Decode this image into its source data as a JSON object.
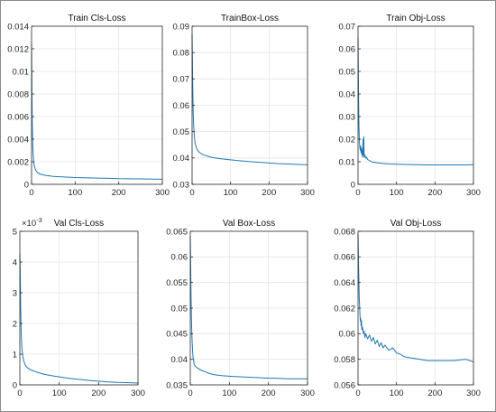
{
  "line_color": "#1f77b4",
  "chart_data": [
    {
      "type": "line",
      "title": "Train Cls-Loss",
      "xlim": [
        0,
        300
      ],
      "ylim": [
        0,
        0.014
      ],
      "xticks": [
        0,
        100,
        200,
        300
      ],
      "yticks": [
        0,
        0.002,
        0.004,
        0.006,
        0.008,
        0.01,
        0.012,
        0.014
      ],
      "ytick_labels": [
        "0",
        "0.002",
        "0.004",
        "0.006",
        "0.008",
        "0.01",
        "0.012",
        "0.014"
      ],
      "grid": true,
      "series": [
        {
          "x": [
            0,
            1,
            2,
            3,
            4,
            5,
            6,
            8,
            10,
            12,
            15,
            20,
            25,
            30,
            40,
            50,
            60,
            70,
            80,
            100,
            120,
            150,
            180,
            200,
            220,
            250,
            280,
            300
          ],
          "y": [
            0.0125,
            0.0075,
            0.0045,
            0.0032,
            0.0025,
            0.002,
            0.0017,
            0.0014,
            0.0012,
            0.0011,
            0.001,
            0.0009,
            0.00085,
            0.0008,
            0.00075,
            0.0007,
            0.00068,
            0.00066,
            0.00064,
            0.0006,
            0.00058,
            0.00055,
            0.00053,
            0.0005,
            0.00049,
            0.00048,
            0.00046,
            0.00045
          ]
        }
      ]
    },
    {
      "type": "line",
      "title": "TrainBox-Loss",
      "xlim": [
        0,
        300
      ],
      "ylim": [
        0.03,
        0.09
      ],
      "xticks": [
        0,
        100,
        200,
        300
      ],
      "yticks": [
        0.03,
        0.04,
        0.05,
        0.06,
        0.07,
        0.08,
        0.09
      ],
      "ytick_labels": [
        "0.03",
        "0.04",
        "0.05",
        "0.06",
        "0.07",
        "0.08",
        "0.09"
      ],
      "grid": true,
      "series": [
        {
          "x": [
            0,
            1,
            2,
            3,
            4,
            5,
            6,
            8,
            10,
            12,
            15,
            20,
            25,
            30,
            40,
            50,
            60,
            80,
            100,
            120,
            150,
            180,
            200,
            220,
            250,
            280,
            300
          ],
          "y": [
            0.087,
            0.075,
            0.064,
            0.057,
            0.053,
            0.05,
            0.048,
            0.0455,
            0.0445,
            0.0435,
            0.0428,
            0.042,
            0.0415,
            0.0412,
            0.0407,
            0.0403,
            0.04,
            0.0396,
            0.0393,
            0.039,
            0.0386,
            0.0383,
            0.0381,
            0.0379,
            0.0377,
            0.0375,
            0.0374
          ]
        }
      ]
    },
    {
      "type": "line",
      "title": "Train Obj-Loss",
      "xlim": [
        0,
        300
      ],
      "ylim": [
        0,
        0.07
      ],
      "xticks": [
        0,
        100,
        200,
        300
      ],
      "yticks": [
        0,
        0.01,
        0.02,
        0.03,
        0.04,
        0.05,
        0.06,
        0.07
      ],
      "ytick_labels": [
        "0",
        "0.01",
        "0.02",
        "0.03",
        "0.04",
        "0.05",
        "0.06",
        "0.07"
      ],
      "grid": true,
      "series": [
        {
          "x": [
            0,
            1,
            2,
            3,
            4,
            5,
            6,
            7,
            8,
            9,
            10,
            11,
            12,
            13,
            14,
            15,
            16,
            18,
            20,
            22,
            25,
            30,
            35,
            40,
            50,
            60,
            80,
            100,
            120,
            150,
            180,
            200,
            220,
            250,
            280,
            300
          ],
          "y": [
            0.065,
            0.045,
            0.03,
            0.022,
            0.018,
            0.016,
            0.015,
            0.017,
            0.014,
            0.016,
            0.013,
            0.015,
            0.012,
            0.02,
            0.013,
            0.021,
            0.012,
            0.013,
            0.0115,
            0.012,
            0.011,
            0.0105,
            0.01,
            0.0098,
            0.0095,
            0.0093,
            0.009,
            0.0089,
            0.0088,
            0.0087,
            0.0086,
            0.0086,
            0.0086,
            0.0086,
            0.0086,
            0.0087
          ]
        }
      ]
    },
    {
      "type": "line",
      "title": "Val Cls-Loss",
      "exponent_label": "×10",
      "exponent_power": "-3",
      "xlim": [
        0,
        300
      ],
      "ylim": [
        0,
        5
      ],
      "xticks": [
        0,
        100,
        200,
        300
      ],
      "yticks": [
        0,
        1,
        2,
        3,
        4,
        5
      ],
      "ytick_labels": [
        "0",
        "1",
        "2",
        "3",
        "4",
        "5"
      ],
      "grid": true,
      "series": [
        {
          "x": [
            0,
            1,
            2,
            3,
            4,
            5,
            6,
            8,
            10,
            12,
            15,
            20,
            25,
            30,
            40,
            50,
            60,
            80,
            100,
            120,
            150,
            180,
            200,
            220,
            250,
            280,
            300
          ],
          "y": [
            4.3,
            3.6,
            2.6,
            1.9,
            1.5,
            1.25,
            1.1,
            0.9,
            0.78,
            0.7,
            0.62,
            0.55,
            0.51,
            0.48,
            0.43,
            0.39,
            0.35,
            0.3,
            0.26,
            0.22,
            0.18,
            0.14,
            0.12,
            0.1,
            0.08,
            0.07,
            0.06
          ]
        }
      ]
    },
    {
      "type": "line",
      "title": "Val Box-Loss",
      "xlim": [
        0,
        300
      ],
      "ylim": [
        0.035,
        0.065
      ],
      "xticks": [
        0,
        100,
        200,
        300
      ],
      "yticks": [
        0.035,
        0.04,
        0.045,
        0.05,
        0.055,
        0.06,
        0.065
      ],
      "ytick_labels": [
        "0.035",
        "0.04",
        "0.045",
        "0.05",
        "0.055",
        "0.06",
        "0.065"
      ],
      "grid": true,
      "series": [
        {
          "x": [
            0,
            1,
            2,
            3,
            4,
            5,
            6,
            7,
            8,
            9,
            10,
            12,
            15,
            20,
            25,
            30,
            40,
            50,
            60,
            80,
            100,
            120,
            150,
            180,
            200,
            220,
            250,
            280,
            300
          ],
          "y": [
            0.064,
            0.058,
            0.052,
            0.048,
            0.045,
            0.043,
            0.0415,
            0.0405,
            0.04,
            0.0395,
            0.039,
            0.0387,
            0.0385,
            0.0382,
            0.038,
            0.0378,
            0.0375,
            0.0372,
            0.037,
            0.0368,
            0.0367,
            0.0366,
            0.0365,
            0.0364,
            0.0363,
            0.0363,
            0.0362,
            0.0362,
            0.0362
          ]
        }
      ]
    },
    {
      "type": "line",
      "title": "Val Obj-Loss",
      "xlim": [
        0,
        300
      ],
      "ylim": [
        0.056,
        0.068
      ],
      "xticks": [
        0,
        100,
        200,
        300
      ],
      "yticks": [
        0.056,
        0.058,
        0.06,
        0.062,
        0.064,
        0.066,
        0.068
      ],
      "ytick_labels": [
        "0.056",
        "0.058",
        "0.06",
        "0.062",
        "0.064",
        "0.066",
        "0.068"
      ],
      "grid": true,
      "series": [
        {
          "x": [
            0,
            1,
            2,
            3,
            4,
            5,
            6,
            7,
            8,
            9,
            10,
            12,
            14,
            16,
            18,
            20,
            25,
            30,
            35,
            40,
            45,
            50,
            55,
            60,
            65,
            70,
            80,
            90,
            100,
            110,
            120,
            140,
            160,
            180,
            200,
            220,
            250,
            280,
            300
          ],
          "y": [
            0.0678,
            0.066,
            0.0645,
            0.063,
            0.0622,
            0.0615,
            0.061,
            0.0612,
            0.0606,
            0.061,
            0.0603,
            0.0605,
            0.06,
            0.0602,
            0.0597,
            0.06,
            0.0596,
            0.0599,
            0.0594,
            0.0597,
            0.0592,
            0.0595,
            0.059,
            0.0593,
            0.0589,
            0.0591,
            0.0587,
            0.0589,
            0.0585,
            0.0584,
            0.0582,
            0.0581,
            0.058,
            0.0579,
            0.0579,
            0.0579,
            0.0579,
            0.058,
            0.0578
          ]
        }
      ]
    }
  ]
}
